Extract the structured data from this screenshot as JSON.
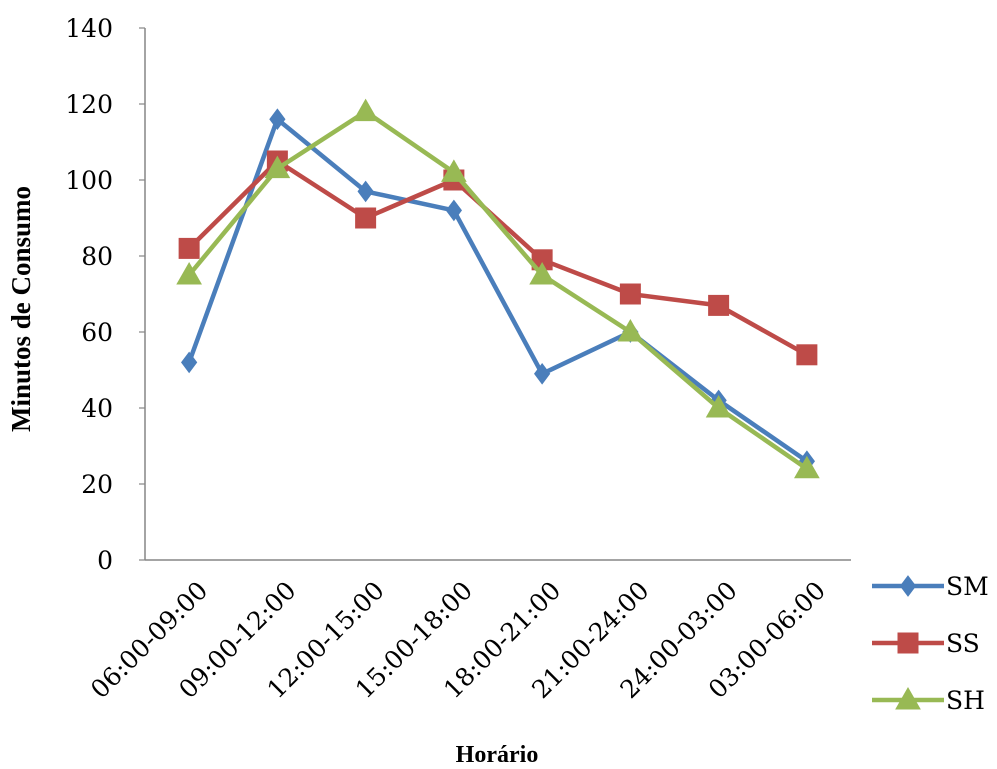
{
  "chart_data": {
    "type": "line",
    "title": "",
    "xlabel": "Horário",
    "ylabel": "Minutos de Consumo",
    "categories": [
      "06:00-09:00",
      "09:00-12:00",
      "12:00-15:00",
      "15:00-18:00",
      "18:00-21:00",
      "21:00-24:00",
      "24:00-03:00",
      "03:00-06:00"
    ],
    "ylim": [
      0,
      140
    ],
    "yticks": [
      "0",
      "20",
      "40",
      "60",
      "80",
      "100",
      "120",
      "140"
    ],
    "grid": false,
    "legend_position": "bottom-right",
    "series": [
      {
        "name": "SM",
        "color": "#4a7ebb",
        "marker": "diamond",
        "values": [
          52,
          116,
          97,
          92,
          49,
          60,
          42,
          26
        ]
      },
      {
        "name": "SS",
        "color": "#be4b48",
        "marker": "square",
        "values": [
          82,
          105,
          90,
          100,
          79,
          70,
          67,
          54
        ]
      },
      {
        "name": "SH",
        "color": "#98b954",
        "marker": "triangle",
        "values": [
          75,
          103,
          118,
          102,
          75,
          60,
          40,
          24
        ]
      }
    ]
  }
}
